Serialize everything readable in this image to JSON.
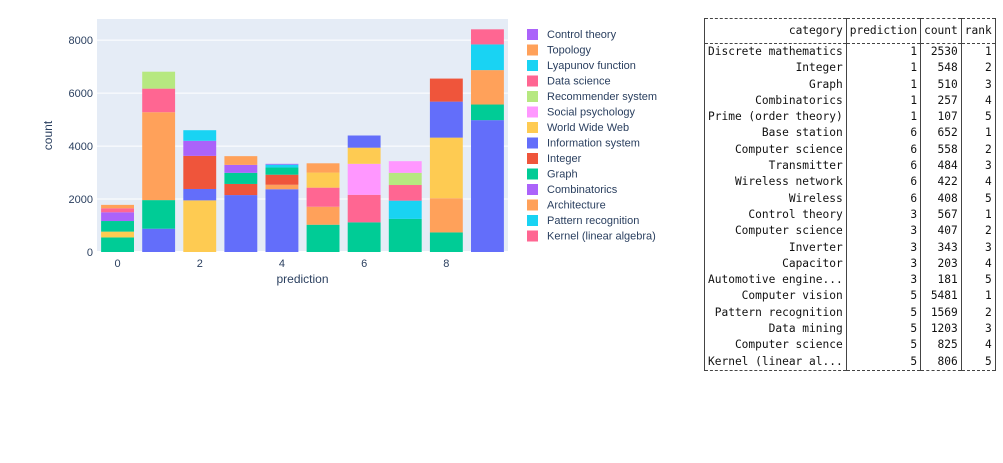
{
  "chart_data": {
    "type": "bar",
    "stacked": true,
    "xlabel": "prediction",
    "ylabel": "count",
    "ylim": [
      0,
      8800
    ],
    "xlim": [
      -0.5,
      9.5
    ],
    "y_ticks": [
      0,
      2000,
      4000,
      6000,
      8000
    ],
    "x_ticks": [
      0,
      2,
      4,
      6,
      8
    ],
    "grid": true,
    "legend_position": "right",
    "categories": [
      0,
      1,
      2,
      3,
      4,
      5,
      6,
      7,
      8,
      9
    ],
    "bars": [
      {
        "x": 0,
        "segments": [
          {
            "label": "Graph",
            "value": 550
          },
          {
            "label": "World Wide Web",
            "value": 220
          },
          {
            "label": "Graph",
            "value": 400
          },
          {
            "label": "Combinatorics",
            "value": 330
          },
          {
            "label": "Data science",
            "value": 150
          },
          {
            "label": "Topology",
            "value": 130
          }
        ]
      },
      {
        "x": 1,
        "segments": [
          {
            "label": "Information system",
            "value": 880
          },
          {
            "label": "Graph",
            "value": 1080
          },
          {
            "label": "Topology",
            "value": 3320
          },
          {
            "label": "Data science",
            "value": 890
          },
          {
            "label": "Recommender system",
            "value": 640
          }
        ]
      },
      {
        "x": 2,
        "segments": [
          {
            "label": "World Wide Web",
            "value": 1950
          },
          {
            "label": "Information system",
            "value": 430
          },
          {
            "label": "Integer",
            "value": 1250
          },
          {
            "label": "Combinatorics",
            "value": 570
          },
          {
            "label": "Lyapunov function",
            "value": 400
          }
        ]
      },
      {
        "x": 3,
        "segments": [
          {
            "label": "Information system",
            "value": 2150
          },
          {
            "label": "Integer",
            "value": 420
          },
          {
            "label": "Graph",
            "value": 420
          },
          {
            "label": "Combinatorics",
            "value": 300
          },
          {
            "label": "Topology",
            "value": 330
          }
        ]
      },
      {
        "x": 4,
        "segments": [
          {
            "label": "Information system",
            "value": 2370
          },
          {
            "label": "Topology",
            "value": 170
          },
          {
            "label": "Integer",
            "value": 380
          },
          {
            "label": "Graph",
            "value": 270
          },
          {
            "label": "Lyapunov function",
            "value": 110
          },
          {
            "label": "Combinatorics",
            "value": 30
          }
        ]
      },
      {
        "x": 5,
        "segments": [
          {
            "label": "Graph",
            "value": 1030
          },
          {
            "label": "Topology",
            "value": 680
          },
          {
            "label": "Data science",
            "value": 720
          },
          {
            "label": "World Wide Web",
            "value": 570
          },
          {
            "label": "Topology",
            "value": 350
          }
        ]
      },
      {
        "x": 6,
        "segments": [
          {
            "label": "Graph",
            "value": 1120
          },
          {
            "label": "Data science",
            "value": 1040
          },
          {
            "label": "Social psychology",
            "value": 1170
          },
          {
            "label": "World Wide Web",
            "value": 610
          },
          {
            "label": "Information system",
            "value": 460
          }
        ]
      },
      {
        "x": 7,
        "segments": [
          {
            "label": "Graph",
            "value": 1250
          },
          {
            "label": "Lyapunov function",
            "value": 690
          },
          {
            "label": "Data science",
            "value": 590
          },
          {
            "label": "Recommender system",
            "value": 460
          },
          {
            "label": "Social psychology",
            "value": 440
          }
        ]
      },
      {
        "x": 8,
        "segments": [
          {
            "label": "Graph",
            "value": 740
          },
          {
            "label": "Topology",
            "value": 1290
          },
          {
            "label": "World Wide Web",
            "value": 2290
          },
          {
            "label": "Information system",
            "value": 1360
          },
          {
            "label": "Integer",
            "value": 870
          }
        ]
      },
      {
        "x": 9,
        "segments": [
          {
            "label": "Information system",
            "value": 4980
          },
          {
            "label": "Graph",
            "value": 590
          },
          {
            "label": "Topology",
            "value": 1300
          },
          {
            "label": "Lyapunov function",
            "value": 970
          },
          {
            "label": "Data science",
            "value": 570
          }
        ]
      }
    ],
    "legend": [
      {
        "name": "Control theory",
        "color": "#ab63fa"
      },
      {
        "name": "Topology",
        "color": "#ffa15a"
      },
      {
        "name": "Lyapunov function",
        "color": "#19d3f3"
      },
      {
        "name": "Data science",
        "color": "#ff6692"
      },
      {
        "name": "Recommender system",
        "color": "#b6e880"
      },
      {
        "name": "Social psychology",
        "color": "#ff97ff"
      },
      {
        "name": "World Wide Web",
        "color": "#fecb52"
      },
      {
        "name": "Information system",
        "color": "#636efa"
      },
      {
        "name": "Integer",
        "color": "#ef553b"
      },
      {
        "name": "Graph",
        "color": "#00cc96"
      },
      {
        "name": "Combinatorics",
        "color": "#ab63fa"
      },
      {
        "name": "Architecture",
        "color": "#ffa15a"
      },
      {
        "name": "Pattern recognition",
        "color": "#19d3f3"
      },
      {
        "name": "Kernel (linear algebra)",
        "color": "#ff6692"
      }
    ]
  },
  "table": {
    "columns": [
      "category",
      "prediction",
      "count",
      "rank"
    ],
    "rows": [
      [
        "Discrete mathematics",
        "1",
        "2530",
        "1"
      ],
      [
        "Integer",
        "1",
        "548",
        "2"
      ],
      [
        "Graph",
        "1",
        "510",
        "3"
      ],
      [
        "Combinatorics",
        "1",
        "257",
        "4"
      ],
      [
        "Prime (order theory)",
        "1",
        "107",
        "5"
      ],
      [
        "Base station",
        "6",
        "652",
        "1"
      ],
      [
        "Computer science",
        "6",
        "558",
        "2"
      ],
      [
        "Transmitter",
        "6",
        "484",
        "3"
      ],
      [
        "Wireless network",
        "6",
        "422",
        "4"
      ],
      [
        "Wireless",
        "6",
        "408",
        "5"
      ],
      [
        "Control theory",
        "3",
        "567",
        "1"
      ],
      [
        "Computer science",
        "3",
        "407",
        "2"
      ],
      [
        "Inverter",
        "3",
        "343",
        "3"
      ],
      [
        "Capacitor",
        "3",
        "203",
        "4"
      ],
      [
        "Automotive engine...",
        "3",
        "181",
        "5"
      ],
      [
        "Computer vision",
        "5",
        "5481",
        "1"
      ],
      [
        "Pattern recognition",
        "5",
        "1569",
        "2"
      ],
      [
        "Data mining",
        "5",
        "1203",
        "3"
      ],
      [
        "Computer science",
        "5",
        "825",
        "4"
      ],
      [
        "Kernel (linear al...",
        "5",
        "806",
        "5"
      ]
    ]
  }
}
